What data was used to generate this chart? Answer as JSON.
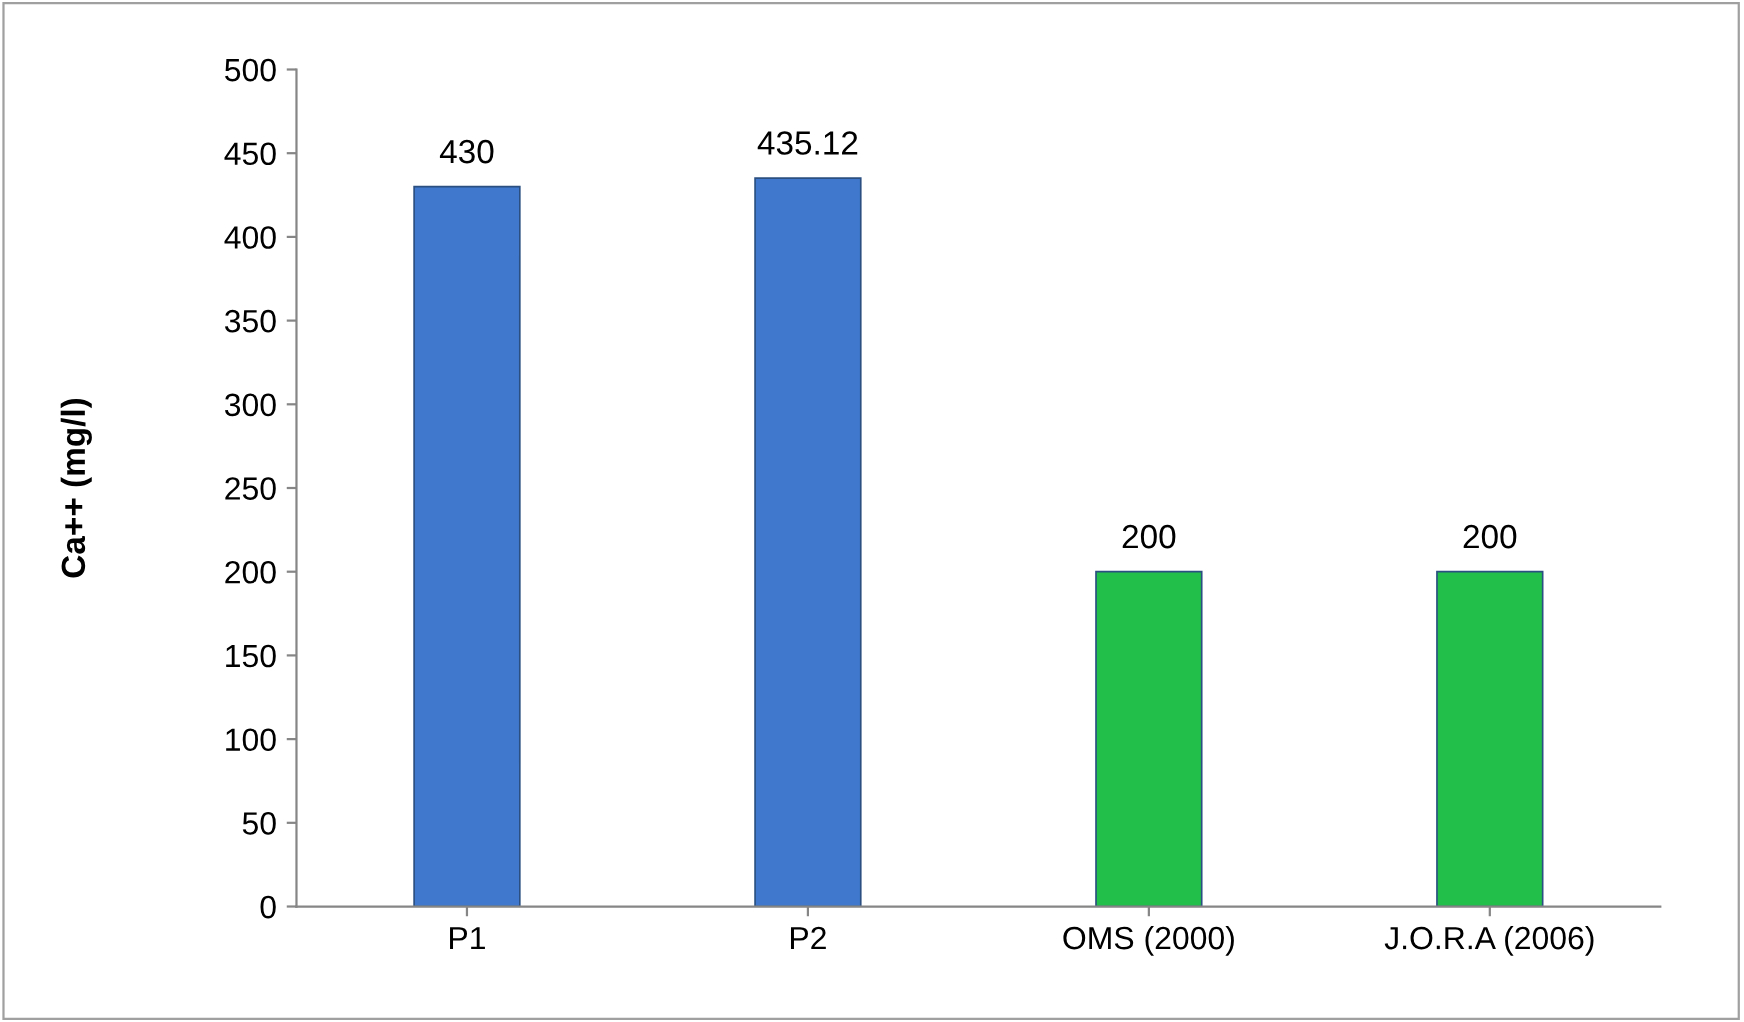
{
  "chart_data": {
    "type": "bar",
    "ylabel": "Ca++ (mg/l)",
    "categories": [
      "P1",
      "P2",
      "OMS (2000)",
      "J.O.R.A (2006)"
    ],
    "values": [
      430,
      435.12,
      200,
      200
    ],
    "colors": [
      "#3f78cc",
      "#3f78cc",
      "#22c04a",
      "#22c04a"
    ],
    "ylim": [
      0,
      500
    ],
    "yticks": [
      0,
      50,
      100,
      150,
      200,
      250,
      300,
      350,
      400,
      450,
      500
    ],
    "data_labels": true,
    "grid": false
  }
}
